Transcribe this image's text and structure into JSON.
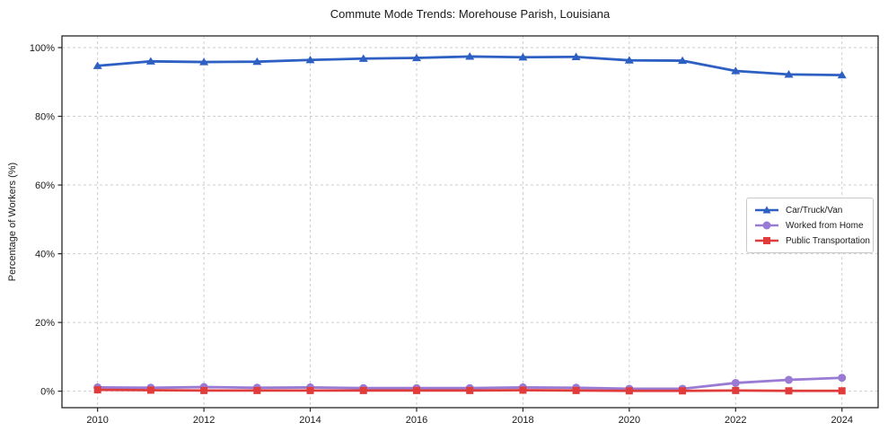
{
  "figure": {
    "title": "Commute Mode Trends: Morehouse Parish, Louisiana",
    "ylabel": "Percentage of Workers (%)"
  },
  "chart_data": {
    "type": "line",
    "title": "Commute Mode Trends: Morehouse Parish, Louisiana",
    "xlabel": "",
    "ylabel": "Percentage of Workers (%)",
    "x": [
      2010,
      2011,
      2012,
      2013,
      2014,
      2015,
      2016,
      2017,
      2018,
      2019,
      2020,
      2021,
      2022,
      2023,
      2024
    ],
    "series": [
      {
        "name": "Car/Truck/Van",
        "color": "#2e5fc3",
        "marker": "triangle",
        "values": [
          94.7,
          96.0,
          95.8,
          95.9,
          96.4,
          96.8,
          97.0,
          97.4,
          97.2,
          97.3,
          96.3,
          96.2,
          93.2,
          92.2,
          92.0
        ]
      },
      {
        "name": "Worked from Home",
        "color": "#9a7bd4",
        "marker": "circle",
        "values": [
          1.1,
          1.0,
          1.2,
          1.0,
          1.1,
          0.9,
          0.9,
          0.9,
          1.1,
          1.0,
          0.7,
          0.7,
          2.4,
          3.3,
          3.9
        ]
      },
      {
        "name": "Public Transportation",
        "color": "#e03c3c",
        "marker": "square",
        "values": [
          0.4,
          0.3,
          0.2,
          0.2,
          0.2,
          0.2,
          0.2,
          0.2,
          0.3,
          0.2,
          0.1,
          0.1,
          0.2,
          0.1,
          0.1
        ]
      }
    ],
    "xlim": [
      2009.33,
      2024.68
    ],
    "ylim": [
      -4.8,
      103.4
    ],
    "xticks": {
      "values": [
        2010,
        2012,
        2014,
        2016,
        2018,
        2020,
        2022,
        2024
      ],
      "labels": [
        "2010",
        "2012",
        "2014",
        "2016",
        "2018",
        "2020",
        "2022",
        "2024"
      ]
    },
    "yticks": {
      "values": [
        0,
        20,
        40,
        60,
        80,
        100
      ],
      "labels": [
        "0%",
        "20%",
        "40%",
        "60%",
        "80%",
        "100%"
      ]
    },
    "grid": "dashed",
    "legend": {
      "position": "center-right",
      "entries": [
        "Car/Truck/Van",
        "Worked from Home",
        "Public Transportation"
      ]
    }
  },
  "colors": {
    "background": "#ffffff",
    "grid": "#cdcdcd",
    "spine": "#262626",
    "tick_text": "#1a1a1a"
  }
}
